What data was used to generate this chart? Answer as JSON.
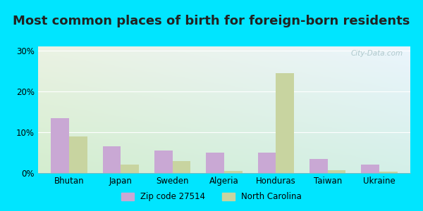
{
  "title": "Most common places of birth for foreign-born residents",
  "categories": [
    "Bhutan",
    "Japan",
    "Sweden",
    "Algeria",
    "Honduras",
    "Taiwan",
    "Ukraine"
  ],
  "zip_values": [
    13.5,
    6.5,
    5.5,
    5.0,
    5.0,
    3.5,
    2.0
  ],
  "nc_values": [
    9.0,
    2.0,
    3.0,
    0.5,
    24.5,
    0.7,
    0.3
  ],
  "zip_color": "#c9a8d4",
  "nc_color": "#c8d4a0",
  "legend_zip": "Zip code 27514",
  "legend_nc": "North Carolina",
  "ylim": [
    0,
    31
  ],
  "yticks": [
    0,
    10,
    20,
    30
  ],
  "ytick_labels": [
    "0%",
    "10%",
    "20%",
    "30%"
  ],
  "outer_color": "#00e5ff",
  "bar_width": 0.35,
  "title_fontsize": 13,
  "watermark": "City-Data.com",
  "bg_topleft": "#e8f5f0",
  "bg_topright": "#f0f8f8",
  "bg_bottomleft": "#dff0dc",
  "bg_bottomright": "#e8f5ee"
}
